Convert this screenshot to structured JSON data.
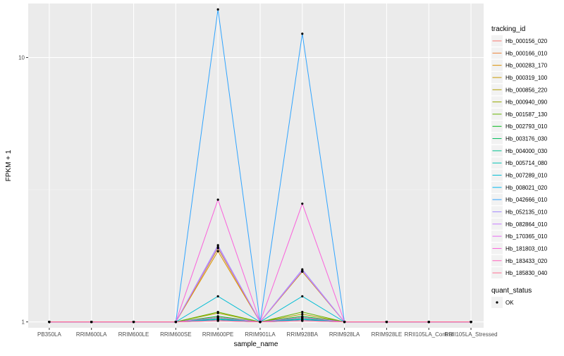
{
  "chart_data": {
    "type": "line",
    "xlabel": "sample_name",
    "ylabel": "FPKM + 1",
    "y_scale": "log10",
    "ylim": [
      0.95,
      16
    ],
    "y_ticks": [
      1,
      10
    ],
    "y_tick_labels": [
      "1",
      "10"
    ],
    "grid": true,
    "legend_position": "right",
    "categories": [
      "PB350LA",
      "RRIM600LA",
      "RRIM600LE",
      "RRIM600SE",
      "RRIM600PE",
      "RRIM901LA",
      "RRIM928BA",
      "RRIM928LA",
      "RRIM928LE",
      "RRII105LA_Control",
      "RRII105LA_Stressed"
    ],
    "legend_title": "tracking_id",
    "series": [
      {
        "name": "Hb_000156_020",
        "color": "#F8766D",
        "values": [
          1,
          1,
          1,
          1,
          1.02,
          1,
          1.02,
          1,
          1,
          1,
          1
        ]
      },
      {
        "name": "Hb_000166_010",
        "color": "#EC8239",
        "values": [
          1,
          1,
          1,
          1,
          1.03,
          1,
          1.03,
          1,
          1,
          1,
          1
        ]
      },
      {
        "name": "Hb_000283_170",
        "color": "#DB8E00",
        "values": [
          1,
          1,
          1,
          1,
          1.85,
          1,
          1.55,
          1,
          1,
          1,
          1
        ]
      },
      {
        "name": "Hb_000319_100",
        "color": "#C79800",
        "values": [
          1,
          1,
          1,
          1,
          1.9,
          1,
          1.55,
          1,
          1,
          1,
          1
        ]
      },
      {
        "name": "Hb_000856_220",
        "color": "#AFA100",
        "values": [
          1,
          1,
          1,
          1,
          1.08,
          1,
          1.07,
          1,
          1,
          1,
          1
        ]
      },
      {
        "name": "Hb_000940_090",
        "color": "#96A900",
        "values": [
          1,
          1,
          1,
          1,
          1.04,
          1,
          1.04,
          1,
          1,
          1,
          1
        ]
      },
      {
        "name": "Hb_001587_130",
        "color": "#64B200",
        "values": [
          1,
          1,
          1,
          1,
          1.09,
          1,
          1.09,
          1,
          1,
          1,
          1
        ]
      },
      {
        "name": "Hb_002793_010",
        "color": "#00B81B",
        "values": [
          1,
          1,
          1,
          1,
          1.05,
          1,
          1.05,
          1,
          1,
          1,
          1
        ]
      },
      {
        "name": "Hb_003176_030",
        "color": "#00BD5C",
        "values": [
          1,
          1,
          1,
          1,
          1.02,
          1,
          1.02,
          1,
          1,
          1,
          1
        ]
      },
      {
        "name": "Hb_004000_030",
        "color": "#00C08D",
        "values": [
          1,
          1,
          1,
          1,
          1.03,
          1,
          1.03,
          1,
          1,
          1,
          1
        ]
      },
      {
        "name": "Hb_005714_080",
        "color": "#00C1B4",
        "values": [
          1,
          1,
          1,
          1,
          1.01,
          1,
          1.01,
          1,
          1,
          1,
          1
        ]
      },
      {
        "name": "Hb_007289_010",
        "color": "#00BDD4",
        "values": [
          1,
          1,
          1,
          1,
          1.25,
          1,
          1.25,
          1,
          1,
          1,
          1
        ]
      },
      {
        "name": "Hb_008021_020",
        "color": "#00B5EE",
        "values": [
          1,
          1,
          1,
          1,
          1.02,
          1,
          1.02,
          1,
          1,
          1,
          1
        ]
      },
      {
        "name": "Hb_042666_010",
        "color": "#2FA4FF",
        "values": [
          1,
          1,
          1,
          1,
          15.2,
          1,
          12.3,
          1,
          1,
          1,
          1
        ]
      },
      {
        "name": "Hb_052135_010",
        "color": "#A58AFF",
        "values": [
          1,
          1,
          1,
          1,
          1.95,
          1,
          1.58,
          1,
          1,
          1,
          1
        ]
      },
      {
        "name": "Hb_082864_010",
        "color": "#C77CFF",
        "values": [
          1,
          1,
          1,
          1,
          1.92,
          1,
          1.56,
          1,
          1,
          1,
          1
        ]
      },
      {
        "name": "Hb_170365_010",
        "color": "#E76BF3",
        "values": [
          1,
          1,
          1,
          1,
          1.04,
          1,
          1.04,
          1,
          1,
          1,
          1
        ]
      },
      {
        "name": "Hb_181803_010",
        "color": "#FA62DB",
        "values": [
          1,
          1,
          1,
          1,
          2.9,
          1,
          2.8,
          1,
          1,
          1,
          1
        ]
      },
      {
        "name": "Hb_183433_020",
        "color": "#FF62BC",
        "values": [
          1,
          1,
          1,
          1,
          1.01,
          1,
          1.01,
          1,
          1,
          1,
          1
        ]
      },
      {
        "name": "Hb_185830_040",
        "color": "#FF6C90",
        "values": [
          1,
          1,
          1,
          1,
          1.01,
          1,
          1.01,
          1,
          1,
          1,
          1
        ]
      }
    ],
    "legend2": {
      "title": "quant_status",
      "items": [
        "OK"
      ]
    },
    "colors": {
      "panel_bg": "#EBEBEB",
      "grid_major": "#FFFFFF",
      "point": "#000000",
      "tick_text": "#4D4D4D"
    }
  }
}
